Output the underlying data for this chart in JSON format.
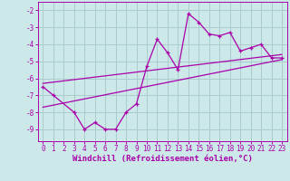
{
  "main_x": [
    0,
    1,
    3,
    4,
    5,
    6,
    7,
    8,
    9,
    10,
    11,
    12,
    13,
    14,
    15,
    16,
    17,
    18,
    19,
    20,
    21,
    22,
    23
  ],
  "main_y": [
    -6.5,
    -7.0,
    -8.0,
    -9.0,
    -8.6,
    -9.0,
    -9.0,
    -8.0,
    -7.5,
    -5.3,
    -3.7,
    -4.5,
    -5.5,
    -2.2,
    -2.7,
    -3.4,
    -3.5,
    -3.3,
    -4.4,
    -4.2,
    -4.0,
    -4.8,
    -4.8
  ],
  "line1_x": [
    0,
    23
  ],
  "line1_y": [
    -6.3,
    -4.6
  ],
  "line2_x": [
    0,
    23
  ],
  "line2_y": [
    -7.7,
    -4.9
  ],
  "color": "#aa00aa",
  "bg_color": "#cce8e8",
  "grid_color": "#aacccc",
  "xlabel": "Windchill (Refroidissement éolien,°C)",
  "xlim": [
    -0.5,
    23.5
  ],
  "ylim": [
    -9.7,
    -1.5
  ],
  "yticks": [
    -9,
    -8,
    -7,
    -6,
    -5,
    -4,
    -3,
    -2
  ],
  "xticks": [
    0,
    1,
    2,
    3,
    4,
    5,
    6,
    7,
    8,
    9,
    10,
    11,
    12,
    13,
    14,
    15,
    16,
    17,
    18,
    19,
    20,
    21,
    22,
    23
  ],
  "tick_fontsize": 5.5,
  "xlabel_fontsize": 6.5
}
